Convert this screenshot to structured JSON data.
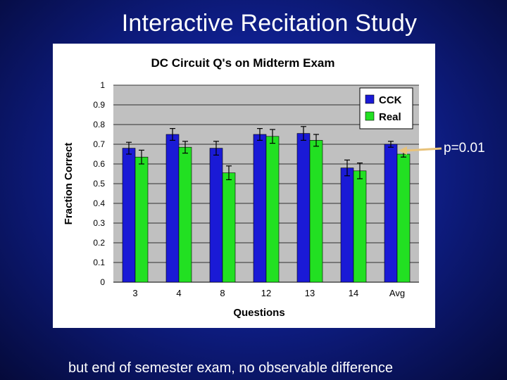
{
  "slide": {
    "title": "Interactive Recitation Study",
    "footer": "but end of semester exam, no observable difference",
    "annotation": "p=0.01"
  },
  "colors": {
    "background": "#0f1f8c",
    "cck": "#1a1ad6",
    "real": "#22e022",
    "plot_area": "#c0c0c0",
    "arrow": "#e8c27a"
  },
  "chart_data": {
    "type": "bar",
    "title": "DC Circuit Q's on Midterm Exam",
    "xlabel": "Questions",
    "ylabel": "Fraction Correct",
    "categories": [
      "3",
      "4",
      "8",
      "12",
      "13",
      "14",
      "Avg"
    ],
    "series": [
      {
        "name": "CCK",
        "values": [
          0.68,
          0.75,
          0.68,
          0.75,
          0.755,
          0.58,
          0.7
        ],
        "errors": [
          0.03,
          0.03,
          0.035,
          0.03,
          0.035,
          0.04,
          0.015
        ]
      },
      {
        "name": "Real",
        "values": [
          0.635,
          0.685,
          0.555,
          0.74,
          0.72,
          0.565,
          0.65
        ],
        "errors": [
          0.035,
          0.03,
          0.035,
          0.035,
          0.03,
          0.04,
          0.015
        ]
      }
    ],
    "ylim": [
      0,
      1
    ],
    "yticks": [
      "0",
      "0.1",
      "0.2",
      "0.3",
      "0.4",
      "0.5",
      "0.6",
      "0.7",
      "0.8",
      "0.9",
      "1"
    ],
    "grid": true,
    "legend": "top-right"
  }
}
